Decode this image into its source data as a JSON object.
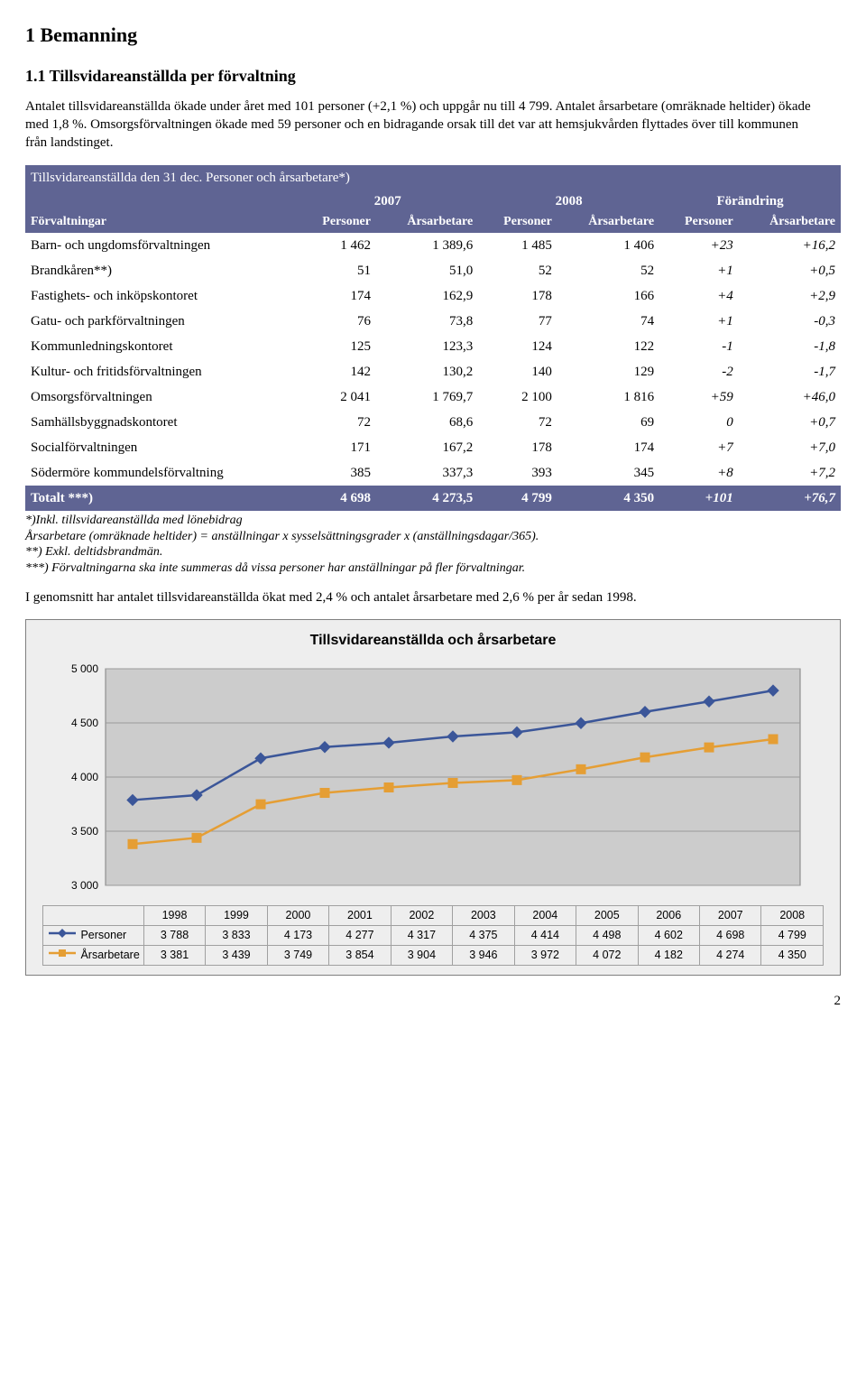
{
  "h1": "1 Bemanning",
  "h2": "1.1 Tillsvidareanställda per förvaltning",
  "p1": "Antalet tillsvidareanställda ökade under året med 101 personer (+2,1 %) och uppgår nu till 4 799. Antalet årsarbetare (omräknade heltider) ökade med 1,8 %. Omsorgsförvaltningen ökade med 59 personer och en bidragande orsak till det var att hemsjukvården flyttades över till kommunen från landstinget.",
  "table": {
    "title": "Tillsvidareanställda den 31 dec. Personer och årsarbetare*)",
    "col_group_left": "Förvaltningar",
    "groups": [
      {
        "label": "2007",
        "sub": [
          "Personer",
          "Årsarbetare"
        ]
      },
      {
        "label": "2008",
        "sub": [
          "Personer",
          "Årsarbetare"
        ]
      },
      {
        "label": "Förändring",
        "sub": [
          "Personer",
          "Årsarbetare"
        ]
      }
    ],
    "rows": [
      {
        "name": "Barn- och ungdomsförvaltningen",
        "c": [
          "1 462",
          "1 389,6",
          "1 485",
          "1 406",
          "+23",
          "+16,2"
        ]
      },
      {
        "name": "Brandkåren**)",
        "c": [
          "51",
          "51,0",
          "52",
          "52",
          "+1",
          "+0,5"
        ]
      },
      {
        "name": "Fastighets- och inköpskontoret",
        "c": [
          "174",
          "162,9",
          "178",
          "166",
          "+4",
          "+2,9"
        ]
      },
      {
        "name": "Gatu- och parkförvaltningen",
        "c": [
          "76",
          "73,8",
          "77",
          "74",
          "+1",
          "-0,3"
        ]
      },
      {
        "name": "Kommunledningskontoret",
        "c": [
          "125",
          "123,3",
          "124",
          "122",
          "-1",
          "-1,8"
        ]
      },
      {
        "name": "Kultur- och fritidsförvaltningen",
        "c": [
          "142",
          "130,2",
          "140",
          "129",
          "-2",
          "-1,7"
        ]
      },
      {
        "name": "Omsorgsförvaltningen",
        "c": [
          "2 041",
          "1 769,7",
          "2 100",
          "1 816",
          "+59",
          "+46,0"
        ]
      },
      {
        "name": "Samhällsbyggnadskontoret",
        "c": [
          "72",
          "68,6",
          "72",
          "69",
          "0",
          "+0,7"
        ]
      },
      {
        "name": "Socialförvaltningen",
        "c": [
          "171",
          "167,2",
          "178",
          "174",
          "+7",
          "+7,0"
        ]
      },
      {
        "name": "Södermöre kommundelsförvaltning",
        "c": [
          "385",
          "337,3",
          "393",
          "345",
          "+8",
          "+7,2"
        ]
      }
    ],
    "total": {
      "name": "Totalt ***)",
      "c": [
        "4 698",
        "4 273,5",
        "4 799",
        "4 350",
        "+101",
        "+76,7"
      ]
    }
  },
  "footnotes": [
    "*)Inkl. tillsvidareanställda med lönebidrag",
    "Årsarbetare (omräknade heltider) = anställningar x sysselsättningsgrader x (anställningsdagar/365).",
    "**) Exkl. deltidsbrandmän.",
    "***) Förvaltningarna ska inte summeras då vissa personer har anställningar på fler förvaltningar."
  ],
  "p2": "I genomsnitt har antalet tillsvidareanställda ökat med 2,4 % och antalet årsarbetare med 2,6 % per år sedan 1998.",
  "chart": {
    "title": "Tillsvidareanställda och årsarbetare",
    "type": "line",
    "x_labels": [
      "1998",
      "1999",
      "2000",
      "2001",
      "2002",
      "2003",
      "2004",
      "2005",
      "2006",
      "2007",
      "2008"
    ],
    "y_ticks": [
      3000,
      3500,
      4000,
      4500,
      5000
    ],
    "y_tick_labels": [
      "3 000",
      "3 500",
      "4 000",
      "4 500",
      "5 000"
    ],
    "ylim": [
      3000,
      5000
    ],
    "series": [
      {
        "name": "Personer",
        "color": "#3b5699",
        "marker": "diamond",
        "values": [
          3788,
          3833,
          4173,
          4277,
          4317,
          4375,
          4414,
          4498,
          4602,
          4698,
          4799
        ]
      },
      {
        "name": "Årsarbetare",
        "color": "#e59e34",
        "marker": "square",
        "values": [
          3381,
          3439,
          3749,
          3854,
          3904,
          3946,
          3972,
          4072,
          4182,
          4274,
          4350
        ]
      }
    ],
    "plot_bg": "#cccccc",
    "grid_color": "#9a9a9a",
    "panel_bg": "#eeeeee",
    "label_fontsize": 12
  },
  "page_number": "2"
}
